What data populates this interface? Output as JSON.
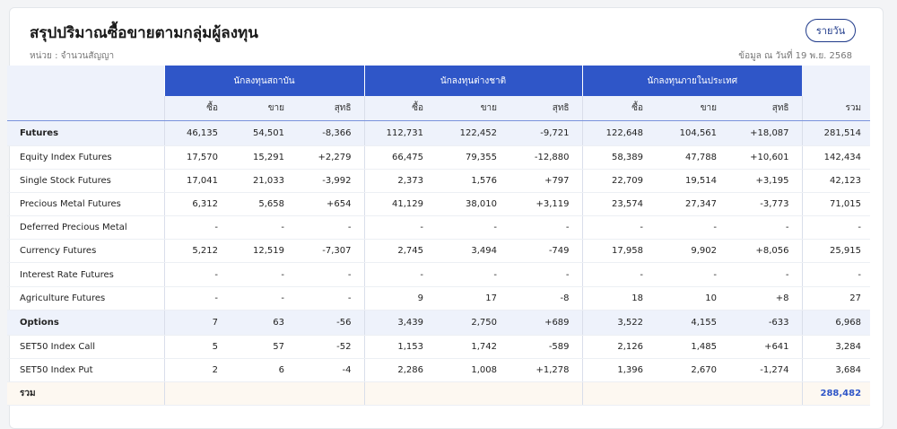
{
  "header": {
    "title": "สรุปปริมาณซื้อขายตามกลุ่มผู้ลงทุน",
    "unit": "หน่วย : จำนวนสัญญา",
    "as_of": "ข้อมูล ณ วันที่ 19 พ.ย. 2568",
    "daily_button": "รายวัน"
  },
  "table": {
    "groups": [
      "นักลงทุนสถาบัน",
      "นักลงทุนต่างชาติ",
      "นักลงทุนภายในประเทศ"
    ],
    "sub": {
      "buy": "ซื้อ",
      "sell": "ขาย",
      "net": "สุทธิ",
      "total": "รวม"
    },
    "rows": [
      {
        "name": "Futures",
        "v": [
          "46,135",
          "54,501",
          "-8,366",
          "112,731",
          "122,452",
          "-9,721",
          "122,648",
          "104,561",
          "+18,087",
          "281,514"
        ]
      },
      {
        "name": "Equity Index Futures",
        "v": [
          "17,570",
          "15,291",
          "+2,279",
          "66,475",
          "79,355",
          "-12,880",
          "58,389",
          "47,788",
          "+10,601",
          "142,434"
        ]
      },
      {
        "name": "Single Stock Futures",
        "v": [
          "17,041",
          "21,033",
          "-3,992",
          "2,373",
          "1,576",
          "+797",
          "22,709",
          "19,514",
          "+3,195",
          "42,123"
        ]
      },
      {
        "name": "Precious Metal Futures",
        "v": [
          "6,312",
          "5,658",
          "+654",
          "41,129",
          "38,010",
          "+3,119",
          "23,574",
          "27,347",
          "-3,773",
          "71,015"
        ]
      },
      {
        "name": "Deferred Precious Metal",
        "v": [
          "-",
          "-",
          "-",
          "-",
          "-",
          "-",
          "-",
          "-",
          "-",
          "-"
        ]
      },
      {
        "name": "Currency Futures",
        "v": [
          "5,212",
          "12,519",
          "-7,307",
          "2,745",
          "3,494",
          "-749",
          "17,958",
          "9,902",
          "+8,056",
          "25,915"
        ]
      },
      {
        "name": "Interest Rate Futures",
        "v": [
          "-",
          "-",
          "-",
          "-",
          "-",
          "-",
          "-",
          "-",
          "-",
          "-"
        ]
      },
      {
        "name": "Agriculture Futures",
        "v": [
          "-",
          "-",
          "-",
          "9",
          "17",
          "-8",
          "18",
          "10",
          "+8",
          "27"
        ]
      },
      {
        "name": "Options",
        "v": [
          "7",
          "63",
          "-56",
          "3,439",
          "2,750",
          "+689",
          "3,522",
          "4,155",
          "-633",
          "6,968"
        ]
      },
      {
        "name": "SET50 Index Call",
        "v": [
          "5",
          "57",
          "-52",
          "1,153",
          "1,742",
          "-589",
          "2,126",
          "1,485",
          "+641",
          "3,284"
        ]
      },
      {
        "name": "SET50 Index Put",
        "v": [
          "2",
          "6",
          "-4",
          "2,286",
          "1,008",
          "+1,278",
          "1,396",
          "2,670",
          "-1,274",
          "3,684"
        ]
      }
    ],
    "sum_row": {
      "name": "รวม",
      "total": "288,482"
    }
  },
  "colors": {
    "header_blue": "#2f56c8",
    "negative": "#e0403b",
    "positive": "#2aa54a"
  }
}
